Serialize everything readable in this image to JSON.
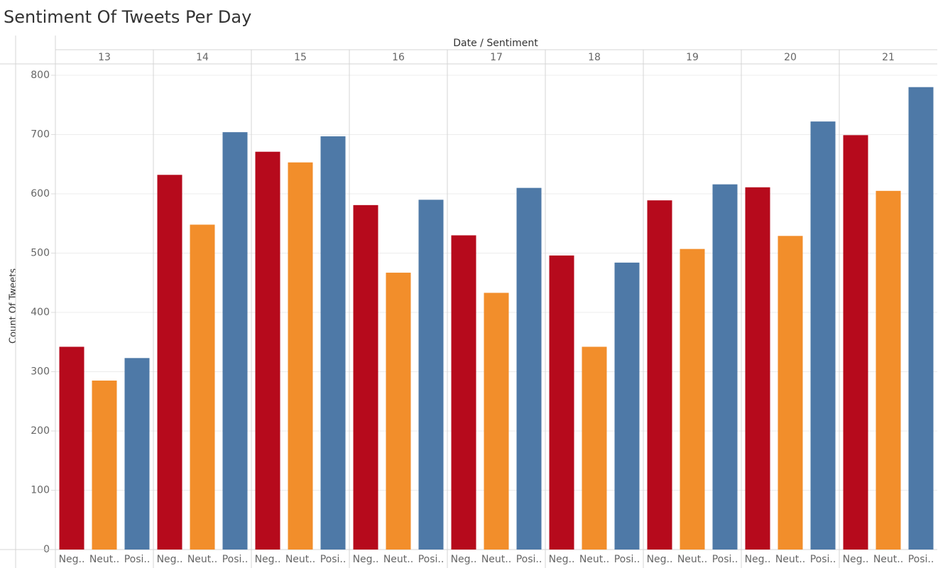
{
  "chart_data": {
    "type": "bar",
    "title": "Sentiment Of Tweets Per Day",
    "header_label": "Date / Sentiment",
    "y_label": "Count Of Tweets",
    "categories": [
      "13",
      "14",
      "15",
      "16",
      "17",
      "18",
      "19",
      "20",
      "21"
    ],
    "series": [
      {
        "name": "Neg..",
        "color": "#b60a1c",
        "values": [
          342,
          632,
          671,
          581,
          530,
          496,
          589,
          611,
          699
        ]
      },
      {
        "name": "Neut..",
        "color": "#f28e2b",
        "values": [
          285,
          548,
          653,
          467,
          433,
          342,
          507,
          529,
          605
        ]
      },
      {
        "name": "Posi..",
        "color": "#4e79a7",
        "values": [
          323,
          704,
          697,
          590,
          610,
          484,
          616,
          722,
          780
        ]
      }
    ],
    "ylim": [
      0,
      800
    ],
    "yticks": [
      0,
      100,
      200,
      300,
      400,
      500,
      600,
      700,
      800
    ],
    "grid": true
  }
}
